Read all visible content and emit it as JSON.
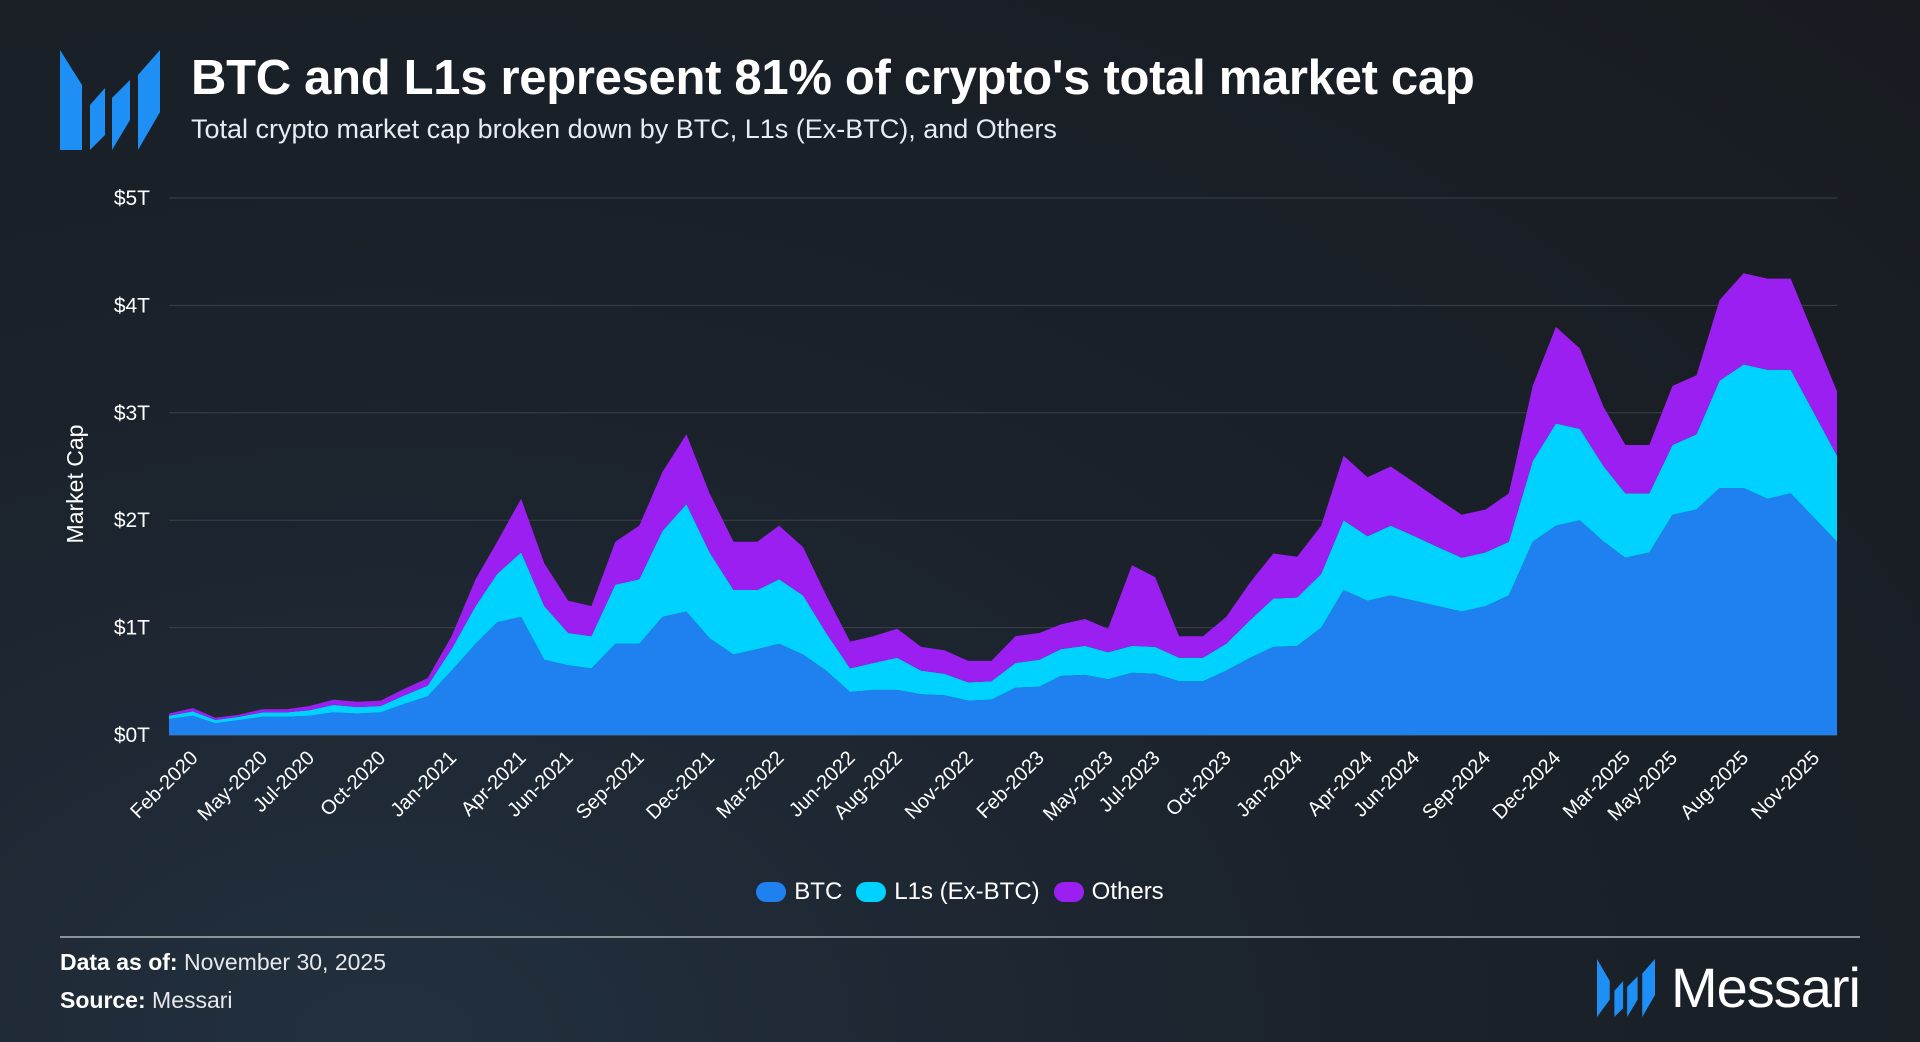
{
  "header": {
    "title": "BTC and L1s represent 81% of crypto's total market cap",
    "subtitle": "Total crypto market cap broken down by BTC, L1s (Ex-BTC), and Others",
    "logo": "messari-m-logo"
  },
  "footer": {
    "data_as_of_label": "Data as of:",
    "data_as_of_value": "November 30, 2025",
    "source_label": "Source:",
    "source_value": "Messari",
    "brand": "Messari"
  },
  "chart_data": {
    "type": "area",
    "stacked": true,
    "ylabel": "Market Cap",
    "xlabel": "",
    "ylim": [
      0,
      5
    ],
    "yticks": [
      "$0T",
      "$1T",
      "$2T",
      "$3T",
      "$4T",
      "$5T"
    ],
    "grid": "horizontal",
    "legend_position": "bottom",
    "xlim": [
      "2020-01-01",
      "2025-11-30"
    ],
    "xticks": [
      {
        "date": "2020-02-01",
        "label": "Feb-2020"
      },
      {
        "date": "2020-05-01",
        "label": "May-2020"
      },
      {
        "date": "2020-07-01",
        "label": "Jul-2020"
      },
      {
        "date": "2020-10-01",
        "label": "Oct-2020"
      },
      {
        "date": "2021-01-01",
        "label": "Jan-2021"
      },
      {
        "date": "2021-04-01",
        "label": "Apr-2021"
      },
      {
        "date": "2021-06-01",
        "label": "Jun-2021"
      },
      {
        "date": "2021-09-01",
        "label": "Sep-2021"
      },
      {
        "date": "2021-12-01",
        "label": "Dec-2021"
      },
      {
        "date": "2022-03-01",
        "label": "Mar-2022"
      },
      {
        "date": "2022-06-01",
        "label": "Jun-2022"
      },
      {
        "date": "2022-08-01",
        "label": "Aug-2022"
      },
      {
        "date": "2022-11-01",
        "label": "Nov-2022"
      },
      {
        "date": "2023-02-01",
        "label": "Feb-2023"
      },
      {
        "date": "2023-05-01",
        "label": "May-2023"
      },
      {
        "date": "2023-07-01",
        "label": "Jul-2023"
      },
      {
        "date": "2023-10-01",
        "label": "Oct-2023"
      },
      {
        "date": "2024-01-01",
        "label": "Jan-2024"
      },
      {
        "date": "2024-04-01",
        "label": "Apr-2024"
      },
      {
        "date": "2024-06-01",
        "label": "Jun-2024"
      },
      {
        "date": "2024-09-01",
        "label": "Sep-2024"
      },
      {
        "date": "2024-12-01",
        "label": "Dec-2024"
      },
      {
        "date": "2025-03-01",
        "label": "Mar-2025"
      },
      {
        "date": "2025-05-01",
        "label": "May-2025"
      },
      {
        "date": "2025-08-01",
        "label": "Aug-2025"
      },
      {
        "date": "2025-11-01",
        "label": "Nov-2025"
      }
    ],
    "x": [
      "2020-01-01",
      "2020-02-01",
      "2020-03-01",
      "2020-04-01",
      "2020-05-01",
      "2020-06-01",
      "2020-07-01",
      "2020-08-01",
      "2020-09-01",
      "2020-10-01",
      "2020-11-01",
      "2020-12-01",
      "2021-01-01",
      "2021-02-01",
      "2021-03-01",
      "2021-04-01",
      "2021-05-01",
      "2021-06-01",
      "2021-07-01",
      "2021-08-01",
      "2021-09-01",
      "2021-10-01",
      "2021-11-01",
      "2021-12-01",
      "2022-01-01",
      "2022-02-01",
      "2022-03-01",
      "2022-04-01",
      "2022-05-01",
      "2022-06-01",
      "2022-07-01",
      "2022-08-01",
      "2022-09-01",
      "2022-10-01",
      "2022-11-01",
      "2022-12-01",
      "2023-01-01",
      "2023-02-01",
      "2023-03-01",
      "2023-04-01",
      "2023-05-01",
      "2023-06-01",
      "2023-07-01",
      "2023-08-01",
      "2023-09-01",
      "2023-10-01",
      "2023-11-01",
      "2023-12-01",
      "2024-01-01",
      "2024-02-01",
      "2024-03-01",
      "2024-04-01",
      "2024-05-01",
      "2024-06-01",
      "2024-07-01",
      "2024-08-01",
      "2024-09-01",
      "2024-10-01",
      "2024-11-01",
      "2024-12-01",
      "2025-01-01",
      "2025-02-01",
      "2025-03-01",
      "2025-04-01",
      "2025-05-01",
      "2025-06-01",
      "2025-07-01",
      "2025-08-01",
      "2025-09-01",
      "2025-10-01",
      "2025-11-30"
    ],
    "series": [
      {
        "name": "BTC",
        "color": "#1f80f0",
        "values": [
          0.15,
          0.18,
          0.11,
          0.14,
          0.17,
          0.17,
          0.18,
          0.21,
          0.2,
          0.21,
          0.29,
          0.36,
          0.6,
          0.85,
          1.05,
          1.1,
          0.7,
          0.65,
          0.62,
          0.85,
          0.85,
          1.1,
          1.15,
          0.9,
          0.75,
          0.8,
          0.85,
          0.75,
          0.6,
          0.4,
          0.42,
          0.42,
          0.38,
          0.37,
          0.32,
          0.33,
          0.44,
          0.45,
          0.55,
          0.56,
          0.52,
          0.58,
          0.57,
          0.5,
          0.5,
          0.6,
          0.72,
          0.82,
          0.83,
          1.0,
          1.35,
          1.25,
          1.3,
          1.25,
          1.2,
          1.15,
          1.2,
          1.3,
          1.8,
          1.95,
          2.0,
          1.8,
          1.65,
          1.7,
          2.05,
          2.1,
          2.3,
          2.3,
          2.2,
          2.25,
          1.8
        ]
      },
      {
        "name": "L1s (Ex-BTC)",
        "color": "#00d2ff",
        "values": [
          0.03,
          0.04,
          0.03,
          0.03,
          0.04,
          0.04,
          0.05,
          0.07,
          0.06,
          0.06,
          0.08,
          0.1,
          0.2,
          0.35,
          0.45,
          0.6,
          0.5,
          0.3,
          0.3,
          0.55,
          0.6,
          0.8,
          1.0,
          0.8,
          0.6,
          0.55,
          0.6,
          0.55,
          0.35,
          0.22,
          0.25,
          0.3,
          0.22,
          0.2,
          0.17,
          0.17,
          0.23,
          0.25,
          0.25,
          0.27,
          0.25,
          0.25,
          0.25,
          0.22,
          0.22,
          0.25,
          0.35,
          0.45,
          0.45,
          0.5,
          0.65,
          0.6,
          0.65,
          0.6,
          0.55,
          0.5,
          0.5,
          0.5,
          0.75,
          0.95,
          0.85,
          0.7,
          0.6,
          0.55,
          0.65,
          0.7,
          1.0,
          1.15,
          1.2,
          1.15,
          0.8
        ]
      },
      {
        "name": "Others",
        "color": "#9a1ff0",
        "values": [
          0.02,
          0.03,
          0.02,
          0.02,
          0.03,
          0.03,
          0.04,
          0.05,
          0.05,
          0.05,
          0.06,
          0.07,
          0.12,
          0.25,
          0.3,
          0.5,
          0.4,
          0.3,
          0.28,
          0.4,
          0.5,
          0.55,
          0.65,
          0.55,
          0.45,
          0.45,
          0.5,
          0.45,
          0.35,
          0.25,
          0.25,
          0.27,
          0.22,
          0.22,
          0.2,
          0.19,
          0.25,
          0.25,
          0.23,
          0.25,
          0.22,
          0.75,
          0.65,
          0.2,
          0.2,
          0.25,
          0.35,
          0.42,
          0.38,
          0.45,
          0.6,
          0.55,
          0.55,
          0.5,
          0.45,
          0.4,
          0.4,
          0.45,
          0.7,
          0.9,
          0.75,
          0.55,
          0.45,
          0.45,
          0.55,
          0.55,
          0.75,
          0.85,
          0.85,
          0.85,
          0.6
        ]
      }
    ]
  }
}
